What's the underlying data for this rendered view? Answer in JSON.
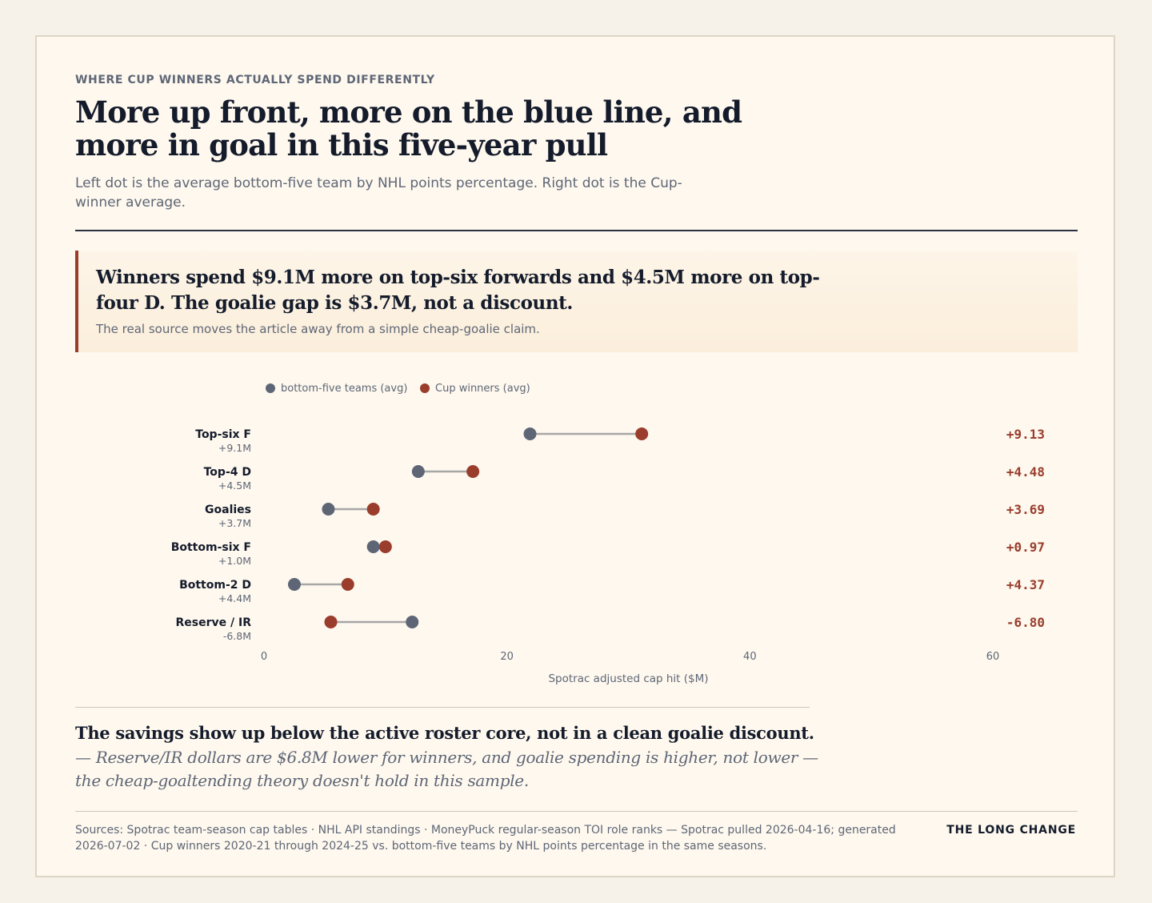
{
  "kicker": "WHERE CUP WINNERS ACTUALLY SPEND DIFFERENTLY",
  "headline": "More up front, more on the blue line, and more in goal in this five-year pull",
  "subtitle": "Left dot is the average bottom-five team by NHL points percentage. Right dot is the Cup-winner average.",
  "callout": {
    "title": "Winners spend $9.1M more on top-six forwards and $4.5M more on top-four D. The goalie gap is $3.7M, not a discount.",
    "note": "The real source moves the article away from a simple cheap-goalie claim."
  },
  "colors": {
    "bottom_five": "#5e6676",
    "cup_winners": "#9a3d2c",
    "connector": "#a7a7a7",
    "delta_text": "#9a3d2c"
  },
  "chart_data": {
    "type": "dumbbell",
    "xlabel": "Spotrac adjusted cap hit ($M)",
    "xlim": [
      0,
      60
    ],
    "xticks": [
      0,
      20,
      40,
      60
    ],
    "legend": [
      "bottom-five teams (avg)",
      "Cup winners (avg)"
    ],
    "legend_position": "top-left",
    "grid": false,
    "rows": [
      {
        "label": "Top-six F",
        "sublabel": "+9.1M",
        "bottom_five": 21.9,
        "cup_winners": 31.1,
        "delta": "+9.13"
      },
      {
        "label": "Top-4 D",
        "sublabel": "+4.5M",
        "bottom_five": 12.7,
        "cup_winners": 17.2,
        "delta": "+4.48"
      },
      {
        "label": "Goalies",
        "sublabel": "+3.7M",
        "bottom_five": 5.3,
        "cup_winners": 9.0,
        "delta": "+3.69"
      },
      {
        "label": "Bottom-six F",
        "sublabel": "+1.0M",
        "bottom_five": 9.0,
        "cup_winners": 10.0,
        "delta": "+0.97"
      },
      {
        "label": "Bottom-2 D",
        "sublabel": "+4.4M",
        "bottom_five": 2.5,
        "cup_winners": 6.9,
        "delta": "+4.37"
      },
      {
        "label": "Reserve / IR",
        "sublabel": "-6.8M",
        "bottom_five": 12.2,
        "cup_winners": 5.5,
        "delta": "-6.80"
      }
    ]
  },
  "takeaway": {
    "head": "The savings show up below the active roster core, not in a clean goalie discount.",
    "body": " — Reserve/IR dollars are $6.8M lower for winners, and goalie spending is higher, not lower — the cheap-goaltending theory doesn't hold in this sample."
  },
  "footer": {
    "sources": "Sources: Spotrac team-season cap tables · NHL API standings · MoneyPuck regular-season TOI role ranks — Spotrac pulled 2026-04-16; generated 2026-07-02 · Cup winners 2020-21 through 2024-25 vs. bottom-five teams by NHL points percentage in the same seasons.",
    "brand": "THE LONG CHANGE"
  }
}
